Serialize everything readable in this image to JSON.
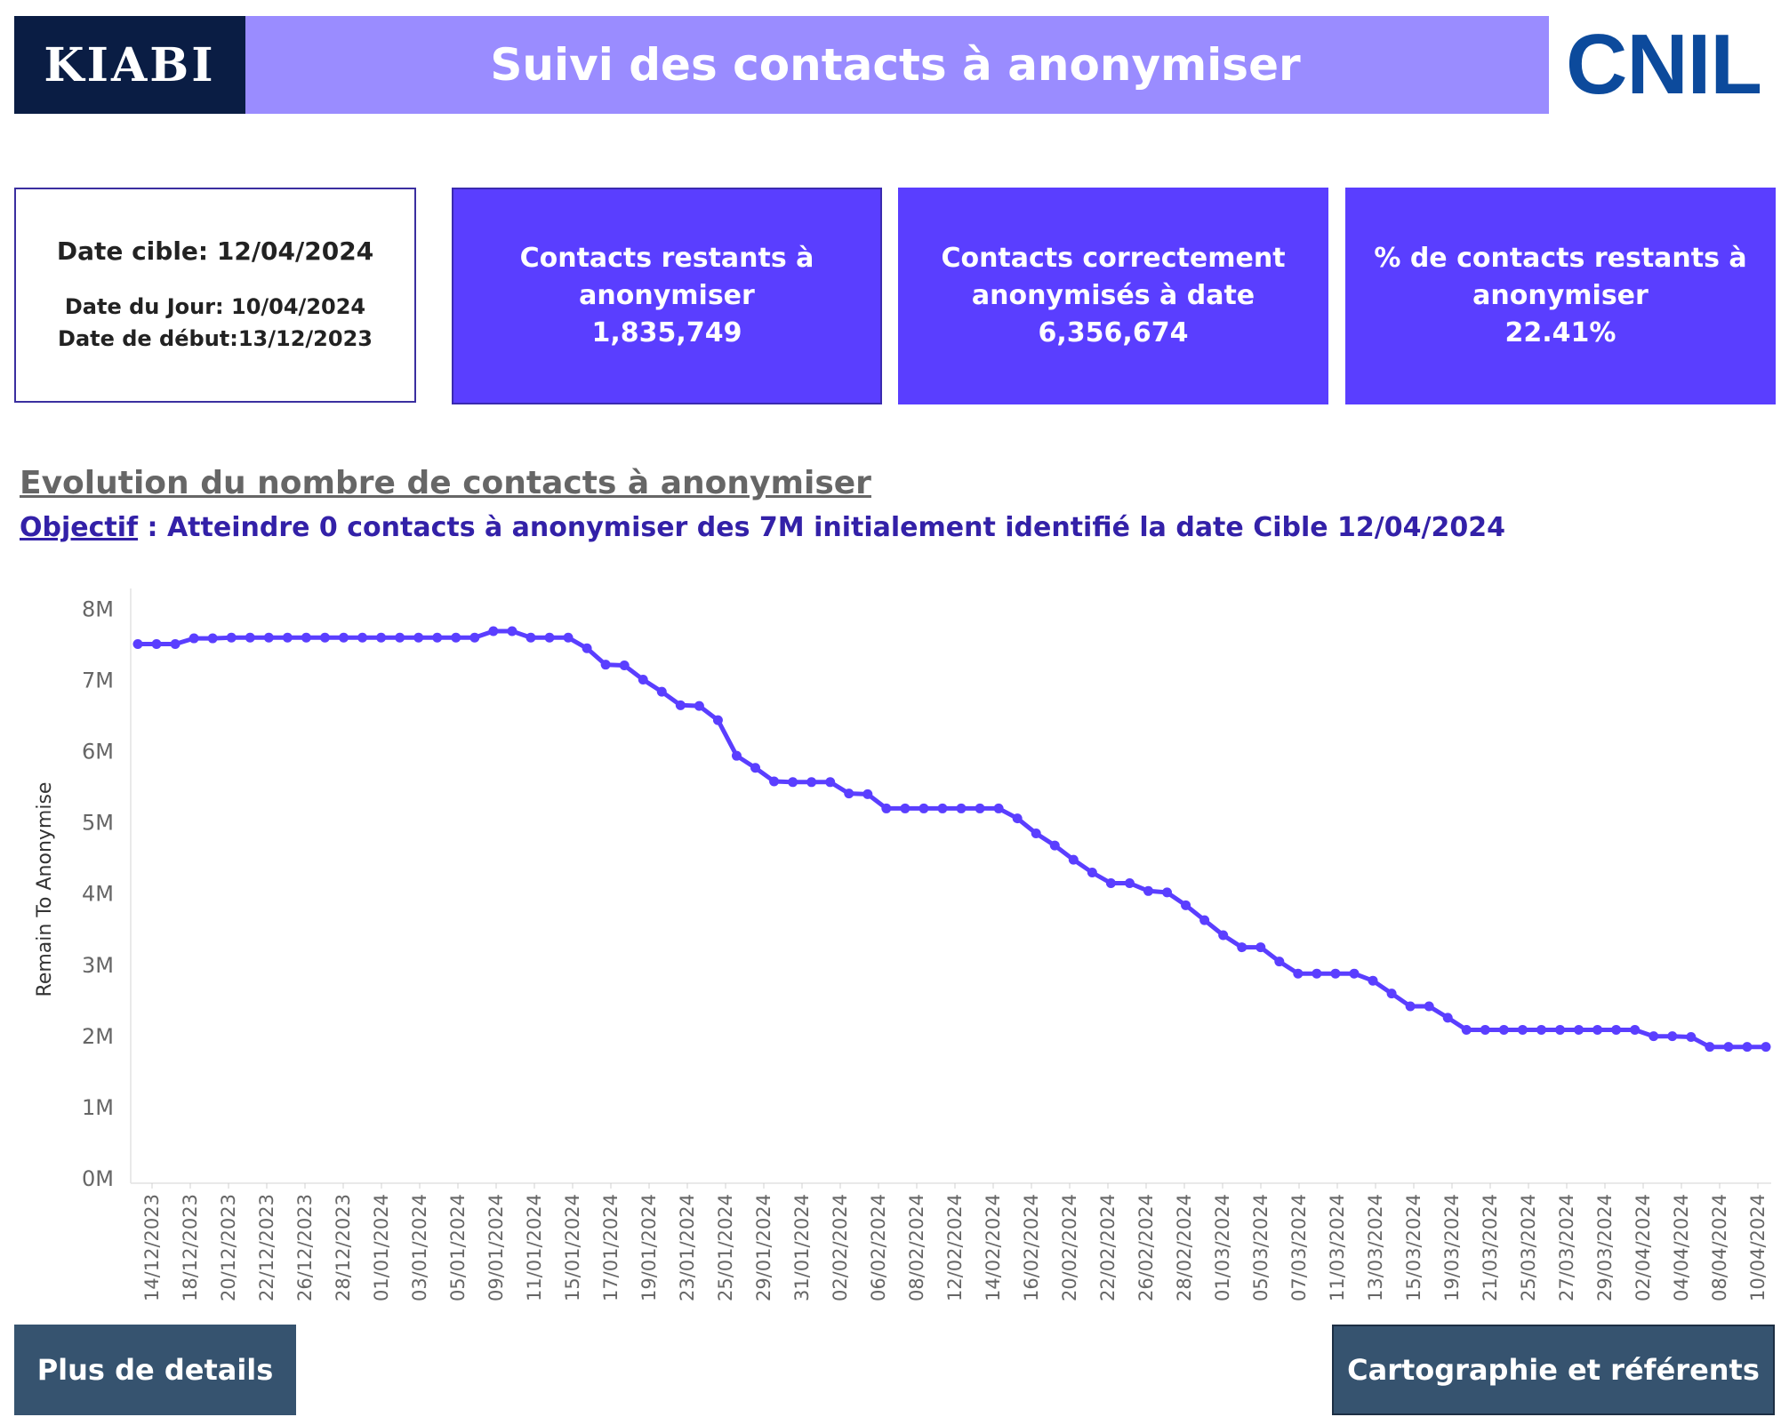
{
  "header": {
    "logo_left": "KIABI",
    "title": "Suivi des contacts à anonymiser",
    "logo_right": "CNIL"
  },
  "dates": {
    "cible": "Date cible: 12/04/2024",
    "jour": "Date du Jour: 10/04/2024",
    "debut": "Date de début:13/12/2023"
  },
  "kpis": [
    {
      "label": "Contacts restants à anonymiser",
      "value": "1,835,749"
    },
    {
      "label": "Contacts correctement anonymisés à date",
      "value": "6,356,674"
    },
    {
      "label": "% de contacts restants à anonymiser",
      "value": "22.41%"
    }
  ],
  "section": {
    "title": "Evolution du nombre de contacts à anonymiser",
    "objectif_label": "Objectif",
    "objectif_text": " : Atteindre 0 contacts à anonymiser des 7M initialement identifié la date Cible 12/04/2024"
  },
  "buttons": {
    "details": "Plus de details",
    "cartographie": "Cartographie et référents"
  },
  "colors": {
    "header_bg": "#9a8cff",
    "kpi_bg": "#5a3eff",
    "line": "#5a3eff",
    "button_bg": "#36536f",
    "kiabi_bg": "#0a1d44",
    "cnil": "#0c4a9c"
  },
  "chart_data": {
    "type": "line",
    "xlabel": "",
    "ylabel": "Remain To Anonymise",
    "ylim": [
      0,
      8000000
    ],
    "y_ticks": [
      "0M",
      "1M",
      "2M",
      "3M",
      "4M",
      "5M",
      "6M",
      "7M",
      "8M"
    ],
    "x_tick_labels": [
      "14/12/2023",
      "18/12/2023",
      "20/12/2023",
      "22/12/2023",
      "26/12/2023",
      "28/12/2023",
      "01/01/2024",
      "03/01/2024",
      "05/01/2024",
      "09/01/2024",
      "11/01/2024",
      "15/01/2024",
      "17/01/2024",
      "19/01/2024",
      "23/01/2024",
      "25/01/2024",
      "29/01/2024",
      "31/01/2024",
      "02/02/2024",
      "06/02/2024",
      "08/02/2024",
      "12/02/2024",
      "14/02/2024",
      "16/02/2024",
      "20/02/2024",
      "22/02/2024",
      "26/02/2024",
      "28/02/2024",
      "01/03/2024",
      "05/03/2024",
      "07/03/2024",
      "11/03/2024",
      "13/03/2024",
      "15/03/2024",
      "19/03/2024",
      "21/03/2024",
      "25/03/2024",
      "27/03/2024",
      "29/03/2024",
      "02/04/2024",
      "04/04/2024",
      "08/04/2024",
      "10/04/2024"
    ],
    "series": [
      {
        "values": [
          7500000,
          7500000,
          7500000,
          7580000,
          7580000,
          7590000,
          7590000,
          7590000,
          7590000,
          7590000,
          7590000,
          7590000,
          7590000,
          7590000,
          7590000,
          7590000,
          7590000,
          7590000,
          7590000,
          7680000,
          7680000,
          7590000,
          7590000,
          7590000,
          7440000,
          7210000,
          7200000,
          7000000,
          6830000,
          6640000,
          6630000,
          6430000,
          5930000,
          5760000,
          5570000,
          5560000,
          5560000,
          5560000,
          5400000,
          5390000,
          5190000,
          5190000,
          5190000,
          5190000,
          5190000,
          5190000,
          5190000,
          5050000,
          4840000,
          4670000,
          4470000,
          4290000,
          4140000,
          4140000,
          4030000,
          4010000,
          3830000,
          3620000,
          3410000,
          3240000,
          3240000,
          3040000,
          2870000,
          2870000,
          2870000,
          2870000,
          2770000,
          2590000,
          2410000,
          2410000,
          2250000,
          2080000,
          2080000,
          2080000,
          2080000,
          2080000,
          2080000,
          2080000,
          2080000,
          2080000,
          2080000,
          1990000,
          1990000,
          1980000,
          1840000,
          1840000,
          1840000,
          1840000
        ]
      }
    ]
  }
}
